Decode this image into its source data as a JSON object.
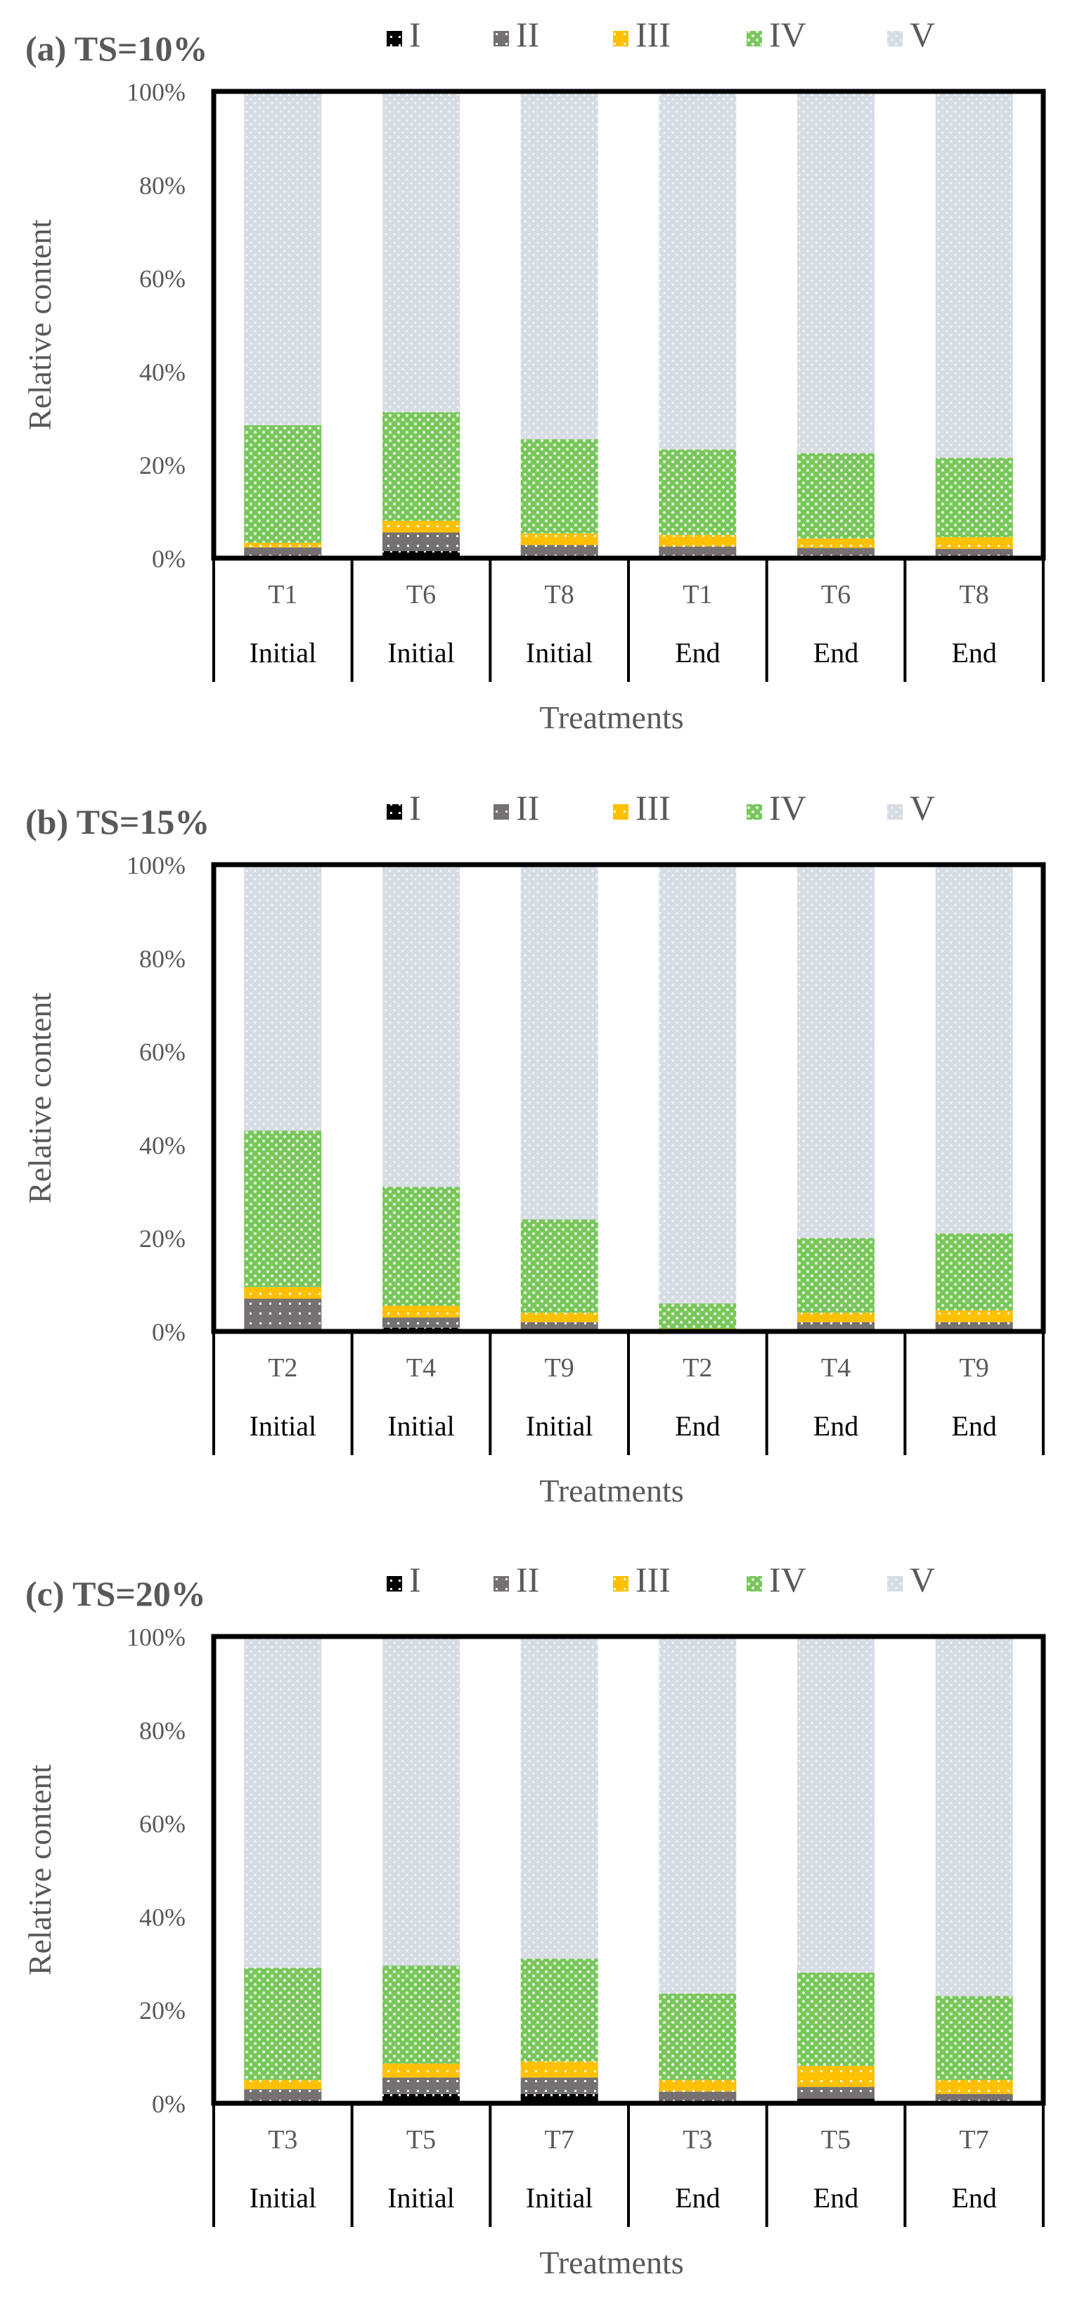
{
  "colors": {
    "I": "#000000",
    "II": "#767171",
    "III": "#ffc000",
    "IV": "#77c65a",
    "V": "#d6dce4",
    "axis": "#000000",
    "tick_text": "#595959"
  },
  "legend": [
    "I",
    "II",
    "III",
    "IV",
    "V"
  ],
  "chart_data": [
    {
      "type": "bar",
      "stacked": true,
      "title": "(a) TS=10%",
      "xlabel": "Treatments",
      "ylabel": "Relative content",
      "ylim": [
        0,
        100
      ],
      "yticks": [
        "0%",
        "20%",
        "40%",
        "60%",
        "80%",
        "100%"
      ],
      "categories": [
        "T1",
        "T6",
        "T8",
        "T1",
        "T6",
        "T8"
      ],
      "stages": [
        "Initial",
        "Initial",
        "Initial",
        "End",
        "End",
        "End"
      ],
      "series": [
        {
          "name": "I",
          "values": [
            0.3,
            1.5,
            0.3,
            0.2,
            0.2,
            0.2
          ]
        },
        {
          "name": "II",
          "values": [
            2.0,
            4.0,
            2.5,
            2.3,
            2.0,
            1.8
          ]
        },
        {
          "name": "III",
          "values": [
            1.0,
            2.5,
            2.5,
            2.5,
            2.0,
            2.5
          ]
        },
        {
          "name": "IV",
          "values": [
            25.2,
            23.3,
            20.2,
            18.3,
            18.3,
            17.0
          ]
        },
        {
          "name": "V",
          "values": [
            71.5,
            68.7,
            74.5,
            76.7,
            77.5,
            78.5
          ]
        }
      ]
    },
    {
      "type": "bar",
      "stacked": true,
      "title": "(b) TS=15%",
      "xlabel": "Treatments",
      "ylabel": "Relative content",
      "ylim": [
        0,
        100
      ],
      "yticks": [
        "0%",
        "20%",
        "40%",
        "60%",
        "80%",
        "100%"
      ],
      "categories": [
        "T2",
        "T4",
        "T9",
        "T2",
        "T4",
        "T9"
      ],
      "stages": [
        "Initial",
        "Initial",
        "Initial",
        "End",
        "End",
        "End"
      ],
      "series": [
        {
          "name": "I",
          "values": [
            0.3,
            0.8,
            0.5,
            0.0,
            0.2,
            0.2
          ]
        },
        {
          "name": "II",
          "values": [
            6.7,
            2.2,
            1.5,
            0.3,
            1.8,
            1.8
          ]
        },
        {
          "name": "III",
          "values": [
            2.5,
            2.5,
            2.0,
            0.3,
            2.0,
            2.5
          ]
        },
        {
          "name": "IV",
          "values": [
            33.5,
            25.5,
            20.0,
            5.4,
            16.0,
            16.5
          ]
        },
        {
          "name": "V",
          "values": [
            57.0,
            69.0,
            76.0,
            94.0,
            80.0,
            79.0
          ]
        }
      ]
    },
    {
      "type": "bar",
      "stacked": true,
      "title": "(c) TS=20%",
      "xlabel": "Treatments",
      "ylabel": "Relative content",
      "ylim": [
        0,
        100
      ],
      "yticks": [
        "0%",
        "20%",
        "40%",
        "60%",
        "80%",
        "100%"
      ],
      "categories": [
        "T3",
        "T5",
        "T7",
        "T3",
        "T5",
        "T7"
      ],
      "stages": [
        "Initial",
        "Initial",
        "Initial",
        "End",
        "End",
        "End"
      ],
      "series": [
        {
          "name": "I",
          "values": [
            0.3,
            2.0,
            2.0,
            0.3,
            1.0,
            0.2
          ]
        },
        {
          "name": "II",
          "values": [
            2.7,
            3.5,
            3.5,
            2.2,
            2.5,
            1.8
          ]
        },
        {
          "name": "III",
          "values": [
            2.0,
            3.0,
            3.5,
            2.5,
            4.5,
            3.0
          ]
        },
        {
          "name": "IV",
          "values": [
            24.0,
            21.0,
            22.0,
            18.5,
            20.0,
            18.0
          ]
        },
        {
          "name": "V",
          "values": [
            71.0,
            70.5,
            69.0,
            76.5,
            72.0,
            77.0
          ]
        }
      ]
    }
  ]
}
